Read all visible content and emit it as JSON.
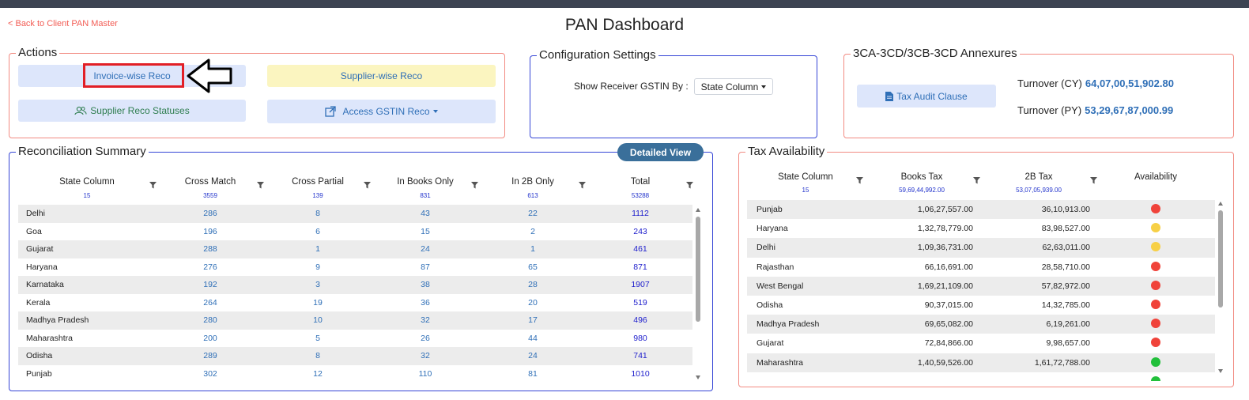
{
  "header": {
    "back_link": "< Back to Client PAN Master",
    "title": "PAN Dashboard"
  },
  "actions": {
    "legend": "Actions",
    "invoice_wise": "Invoice-wise Reco",
    "supplier_wise": "Supplier-wise Reco",
    "supplier_statuses": "Supplier Reco Statuses",
    "access_gstin": "Access GSTIN Reco"
  },
  "config": {
    "legend": "Configuration Settings",
    "label": "Show Receiver GSTIN By :",
    "selected": "State Column"
  },
  "annexures": {
    "legend": "3CA-3CD/3CB-3CD Annexures",
    "tax_audit": "Tax Audit Clause",
    "turnover_cy_label": "Turnover (CY)",
    "turnover_cy_value": "64,07,00,51,902.80",
    "turnover_py_label": "Turnover (PY)",
    "turnover_py_value": "53,29,67,87,000.99"
  },
  "reco": {
    "legend": "Reconciliation Summary",
    "detailed_view": "Detailed View",
    "columns": [
      {
        "label": "State Column",
        "count": "15"
      },
      {
        "label": "Cross Match",
        "count": "3559"
      },
      {
        "label": "Cross Partial",
        "count": "139"
      },
      {
        "label": "In Books Only",
        "count": "831"
      },
      {
        "label": "In 2B Only",
        "count": "613"
      },
      {
        "label": "Total",
        "count": "53288"
      }
    ],
    "rows": [
      [
        "Delhi",
        "286",
        "8",
        "43",
        "22",
        "1112"
      ],
      [
        "Goa",
        "196",
        "6",
        "15",
        "2",
        "243"
      ],
      [
        "Gujarat",
        "288",
        "1",
        "24",
        "1",
        "461"
      ],
      [
        "Haryana",
        "276",
        "9",
        "87",
        "65",
        "871"
      ],
      [
        "Karnataka",
        "192",
        "3",
        "38",
        "28",
        "1907"
      ],
      [
        "Kerala",
        "264",
        "19",
        "36",
        "20",
        "519"
      ],
      [
        "Madhya Pradesh",
        "280",
        "10",
        "32",
        "17",
        "496"
      ],
      [
        "Maharashtra",
        "200",
        "5",
        "26",
        "44",
        "980"
      ],
      [
        "Odisha",
        "289",
        "8",
        "32",
        "24",
        "741"
      ],
      [
        "Punjab",
        "302",
        "12",
        "110",
        "81",
        "1010"
      ]
    ]
  },
  "tax": {
    "legend": "Tax Availability",
    "columns": [
      {
        "label": "State Column",
        "count": "15"
      },
      {
        "label": "Books Tax",
        "count": "59,69,44,992.00"
      },
      {
        "label": "2B Tax",
        "count": "53,07,05,939.00"
      },
      {
        "label": "Availability",
        "count": ""
      }
    ],
    "rows": [
      {
        "state": "Punjab",
        "books": "1,06,27,557.00",
        "b2": "36,10,913.00",
        "status": "red"
      },
      {
        "state": "Haryana",
        "books": "1,32,78,779.00",
        "b2": "83,98,527.00",
        "status": "yellow"
      },
      {
        "state": "Delhi",
        "books": "1,09,36,731.00",
        "b2": "62,63,011.00",
        "status": "yellow"
      },
      {
        "state": "Rajasthan",
        "books": "66,16,691.00",
        "b2": "28,58,710.00",
        "status": "red"
      },
      {
        "state": "West Bengal",
        "books": "1,69,21,109.00",
        "b2": "57,82,972.00",
        "status": "red"
      },
      {
        "state": "Odisha",
        "books": "90,37,015.00",
        "b2": "14,32,785.00",
        "status": "red"
      },
      {
        "state": "Madhya Pradesh",
        "books": "69,65,082.00",
        "b2": "6,19,261.00",
        "status": "red"
      },
      {
        "state": "Gujarat",
        "books": "72,84,866.00",
        "b2": "9,98,657.00",
        "status": "red"
      },
      {
        "state": "Maharashtra",
        "books": "1,40,59,526.00",
        "b2": "1,61,72,788.00",
        "status": "green"
      }
    ]
  },
  "colors": {
    "red": "#f0433a",
    "yellow": "#f7d046",
    "green": "#22c03b",
    "accent_blue": "#2f6fb7"
  },
  "icons": {
    "filter": "filter-icon",
    "users": "users-icon",
    "external": "external-link-icon",
    "document": "document-icon",
    "arrow": "arrow-left-icon"
  }
}
